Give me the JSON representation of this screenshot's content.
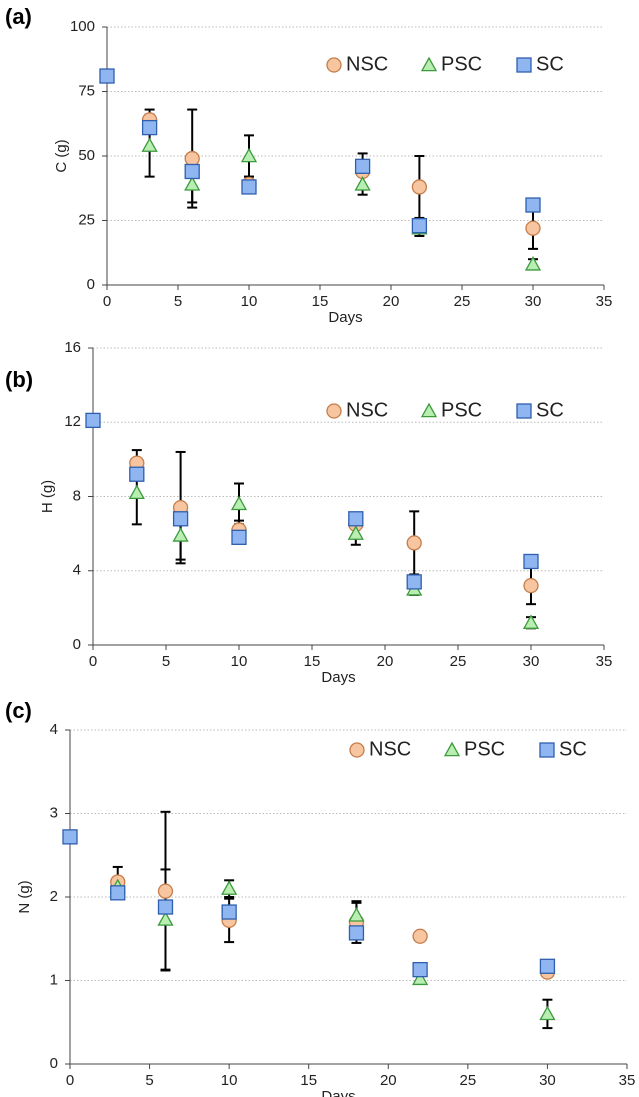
{
  "chart_data": [
    {
      "type": "scatter",
      "panel_label": "(a)",
      "xlabel": "Days",
      "ylabel": "C (g)",
      "xlim": [
        0,
        35
      ],
      "xticks": [
        0,
        5,
        10,
        15,
        20,
        25,
        30,
        35
      ],
      "ylim": [
        0,
        100
      ],
      "yticks": [
        0,
        25,
        50,
        75,
        100
      ],
      "grid": true,
      "legend": "top-right",
      "series": [
        {
          "name": "NSC",
          "marker": "circle",
          "color": "#f7c6a0",
          "x": [
            3,
            6,
            10,
            18,
            22,
            30
          ],
          "values": [
            64,
            49,
            39,
            44,
            38,
            22
          ],
          "errors": [
            4,
            19,
            3,
            7,
            12,
            8
          ]
        },
        {
          "name": "PSC",
          "marker": "triangle",
          "color": "#b8eeb2",
          "x": [
            3,
            6,
            10,
            18,
            22,
            30
          ],
          "values": [
            54,
            39,
            50,
            39,
            22,
            8
          ],
          "errors": [
            12,
            7,
            8,
            4,
            3,
            2
          ]
        },
        {
          "name": "SC",
          "marker": "square",
          "color": "#8fb6f0",
          "x": [
            0,
            3,
            6,
            10,
            18,
            22,
            30
          ],
          "values": [
            81,
            61,
            44,
            38,
            46,
            23,
            31
          ]
        }
      ]
    },
    {
      "type": "scatter",
      "panel_label": "(b)",
      "xlabel": "Days",
      "ylabel": "H (g)",
      "xlim": [
        0,
        35
      ],
      "xticks": [
        0,
        5,
        10,
        15,
        20,
        25,
        30,
        35
      ],
      "ylim": [
        0,
        16
      ],
      "yticks": [
        0,
        4,
        8,
        12,
        16
      ],
      "grid": true,
      "legend": "top-right",
      "series": [
        {
          "name": "NSC",
          "marker": "circle",
          "color": "#f7c6a0",
          "x": [
            3,
            6,
            10,
            18,
            22,
            30
          ],
          "values": [
            9.8,
            7.4,
            6.2,
            6.5,
            5.5,
            3.2
          ],
          "errors": [
            0.7,
            3,
            0.5,
            0.6,
            1.7,
            1
          ]
        },
        {
          "name": "PSC",
          "marker": "triangle",
          "color": "#b8eeb2",
          "x": [
            3,
            6,
            10,
            18,
            22,
            30
          ],
          "values": [
            8.2,
            5.9,
            7.6,
            6.0,
            3.0,
            1.2
          ],
          "errors": [
            1.7,
            1.3,
            1.1,
            0.6,
            0.3,
            0.3
          ]
        },
        {
          "name": "SC",
          "marker": "square",
          "color": "#8fb6f0",
          "x": [
            0,
            3,
            6,
            10,
            18,
            22,
            30
          ],
          "values": [
            12.1,
            9.2,
            6.8,
            5.8,
            6.8,
            3.4,
            4.5
          ]
        }
      ]
    },
    {
      "type": "scatter",
      "panel_label": "(c)",
      "xlabel": "Days",
      "ylabel": "N (g)",
      "xlim": [
        0,
        35
      ],
      "xticks": [
        0,
        5,
        10,
        15,
        20,
        25,
        30,
        35
      ],
      "ylim": [
        0,
        4
      ],
      "yticks": [
        0,
        1,
        2,
        3,
        4
      ],
      "grid": true,
      "legend": "top-right",
      "series": [
        {
          "name": "NSC",
          "marker": "circle",
          "color": "#f7c6a0",
          "x": [
            3,
            6,
            10,
            18,
            22,
            30
          ],
          "values": [
            2.18,
            2.07,
            1.72,
            1.7,
            1.53,
            1.1
          ],
          "errors": [
            0.18,
            0.95,
            0.26,
            0.25,
            0.05,
            0.05
          ]
        },
        {
          "name": "PSC",
          "marker": "triangle",
          "color": "#b8eeb2",
          "x": [
            3,
            6,
            10,
            18,
            22,
            30
          ],
          "values": [
            2.12,
            1.73,
            2.1,
            1.78,
            1.02,
            0.6
          ],
          "errors": [
            0.1,
            0.6,
            0.1,
            0.15,
            0.05,
            0.17
          ]
        },
        {
          "name": "SC",
          "marker": "square",
          "color": "#8fb6f0",
          "x": [
            0,
            3,
            6,
            10,
            18,
            22,
            30
          ],
          "values": [
            2.72,
            2.05,
            1.88,
            1.82,
            1.57,
            1.13,
            1.17
          ]
        }
      ]
    }
  ]
}
